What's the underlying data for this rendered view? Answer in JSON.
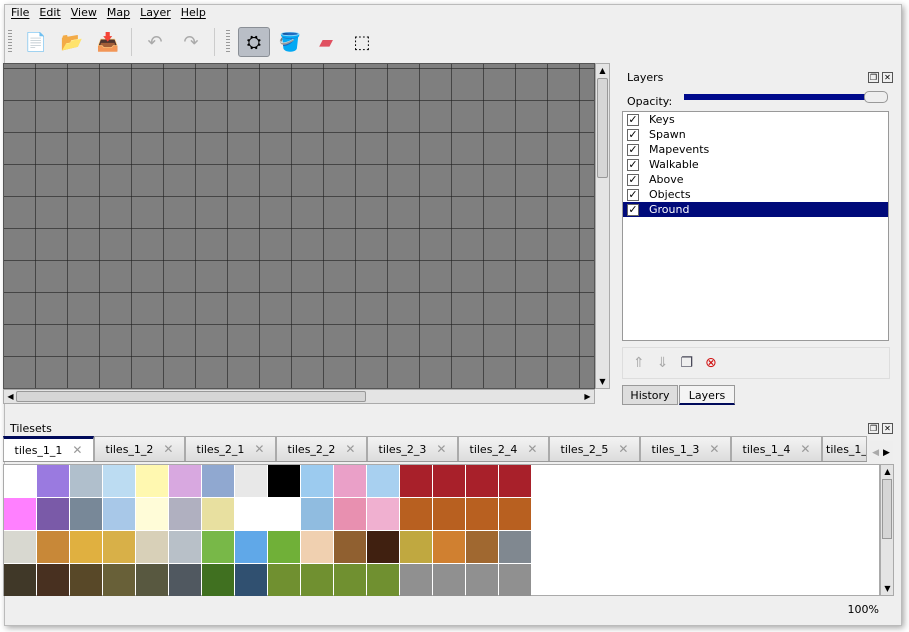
{
  "menu": [
    "File",
    "Edit",
    "View",
    "Map",
    "Layer",
    "Help"
  ],
  "toolbar": [
    {
      "name": "new-icon",
      "glyph": "📄"
    },
    {
      "name": "open-icon",
      "glyph": "📂"
    },
    {
      "name": "save-icon",
      "glyph": "📥"
    },
    {
      "name": "undo-icon",
      "glyph": "↶"
    },
    {
      "name": "redo-icon",
      "glyph": "↷"
    },
    {
      "name": "stamp-icon",
      "glyph": "⛭",
      "active": true
    },
    {
      "name": "bucket-fill-icon",
      "glyph": "🪣"
    },
    {
      "name": "eraser-icon",
      "glyph": "▰"
    },
    {
      "name": "rect-select-icon",
      "glyph": "⬚"
    }
  ],
  "layers_panel": {
    "title": "Layers",
    "opacity_label": "Opacity:",
    "opacity": 100,
    "items": [
      {
        "label": "Keys",
        "checked": true
      },
      {
        "label": "Spawn",
        "checked": true
      },
      {
        "label": "Mapevents",
        "checked": true
      },
      {
        "label": "Walkable",
        "checked": true
      },
      {
        "label": "Above",
        "checked": true
      },
      {
        "label": "Objects",
        "checked": true
      },
      {
        "label": "Ground",
        "checked": true,
        "selected": true
      }
    ],
    "tabs": [
      "History",
      "Layers"
    ],
    "active_tab": "Layers"
  },
  "tilesets": {
    "title": "Tilesets",
    "tabs": [
      "tiles_1_1",
      "tiles_1_2",
      "tiles_2_1",
      "tiles_2_2",
      "tiles_2_3",
      "tiles_2_4",
      "tiles_2_5",
      "tiles_1_3",
      "tiles_1_4",
      "tiles_1_"
    ],
    "active": "tiles_1_1",
    "tile_colors": [
      "#ffffff",
      "#9a7ae0",
      "#b0bfcc",
      "#bcdcf2",
      "#fff8b0",
      "#d8a8e0",
      "#90a8d0",
      "#e8e8e8",
      "#000000",
      "#9ccbef",
      "#eaa0c8",
      "#a8d0f0",
      "#a8202a",
      "#a8202a",
      "#a8202a",
      "#a8202a",
      "#ff80ff",
      "#7a5aa8",
      "#788898",
      "#a8c8e8",
      "#fffcd8",
      "#b0b0c0",
      "#e8e0a0",
      "#ffffff",
      "#ffffff",
      "#90bce0",
      "#e890b0",
      "#f0b0d0",
      "#b86020",
      "#b86020",
      "#b86020",
      "#b86020",
      "#d8d8d0",
      "#c88838",
      "#e0b040",
      "#d8b048",
      "#d8d0b8",
      "#b8c0c8",
      "#78b848",
      "#60a8e8",
      "#70b038",
      "#f0d0b0",
      "#906030",
      "#402010",
      "#c0a840",
      "#d08030",
      "#a06830",
      "#808890",
      "#403828",
      "#483020",
      "#584828",
      "#686038",
      "#585840",
      "#505860",
      "#407020",
      "#305070",
      "#709030",
      "#709030",
      "#709030",
      "#709030",
      "#909090",
      "#909090",
      "#909090",
      "#909090"
    ]
  },
  "status": {
    "zoom": "100%"
  }
}
